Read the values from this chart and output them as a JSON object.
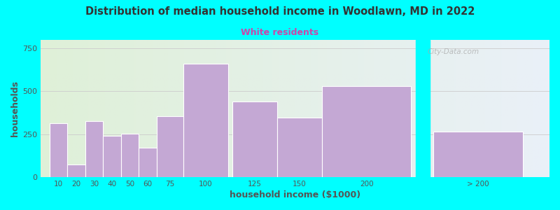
{
  "title": "Distribution of median household income in Woodlawn, MD in 2022",
  "subtitle": "White residents",
  "xlabel": "household income ($1000)",
  "ylabel": "households",
  "background_color": "#00FFFF",
  "plot_bg_left": "#dff0d8",
  "plot_bg_right": "#eaf0f8",
  "bar_color": "#c4a8d4",
  "bar_edge_color": "#ffffff",
  "title_color": "#333333",
  "subtitle_color": "#cc44aa",
  "axis_label_color": "#555555",
  "tick_label_color": "#555555",
  "watermark": "City-Data.com",
  "categories": [
    "10",
    "20",
    "30",
    "40",
    "50",
    "60",
    "75",
    "100",
    "125",
    "150",
    "200",
    "> 200"
  ],
  "values": [
    315,
    75,
    325,
    240,
    255,
    170,
    355,
    660,
    440,
    345,
    530,
    265
  ],
  "bar_lefts": [
    5,
    15,
    25,
    35,
    45,
    55,
    65,
    80,
    107.5,
    132.5,
    157.5,
    220
  ],
  "bar_widths": [
    10,
    10,
    10,
    10,
    10,
    10,
    15,
    25,
    25,
    25,
    50,
    50
  ],
  "ylim": [
    0,
    800
  ],
  "yticks": [
    0,
    250,
    500,
    750
  ],
  "xlim_left": 0,
  "xlim_right": 285,
  "gap_start": 210,
  "gap_end": 218,
  "figsize": [
    8.0,
    3.0
  ],
  "dpi": 100
}
